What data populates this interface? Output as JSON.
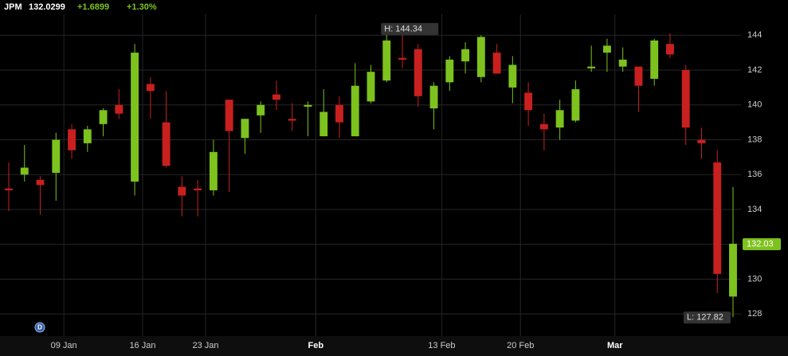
{
  "chart_data": {
    "type": "candlestick",
    "symbol": "JPM",
    "price": "132.0299",
    "change": "+1.6899",
    "change_pct": "+1.30%",
    "open": [
      135.2,
      136.0,
      135.7,
      136.1,
      138.6,
      137.8,
      138.9,
      140.0,
      135.6,
      141.2,
      139.0,
      135.3,
      135.2,
      135.1,
      140.3,
      138.1,
      139.4,
      140.6,
      139.2,
      139.9,
      138.2,
      140.0,
      138.2,
      140.2,
      141.4,
      142.7,
      143.2,
      139.8,
      141.3,
      142.5,
      141.6,
      143.0,
      141.0,
      140.7,
      138.9,
      138.7,
      139.1,
      142.1,
      143.0,
      142.2,
      142.2,
      141.5,
      143.5,
      142.0,
      138.0,
      136.7,
      129.0
    ],
    "high": [
      136.7,
      137.7,
      135.9,
      138.4,
      138.9,
      138.8,
      139.8,
      140.9,
      143.5,
      141.6,
      140.8,
      135.9,
      135.7,
      138.0,
      140.3,
      139.2,
      140.2,
      141.4,
      140.1,
      140.2,
      140.9,
      140.5,
      142.4,
      142.3,
      144.34,
      144.0,
      143.5,
      141.3,
      142.8,
      143.6,
      144.0,
      143.5,
      142.8,
      141.3,
      139.5,
      140.3,
      141.4,
      143.4,
      143.8,
      143.3,
      142.2,
      143.8,
      144.1,
      142.3,
      138.7,
      137.4,
      135.3
    ],
    "low": [
      133.9,
      135.6,
      133.7,
      134.5,
      136.9,
      137.3,
      138.2,
      139.2,
      134.8,
      139.2,
      136.4,
      133.6,
      133.6,
      134.8,
      135.0,
      137.2,
      138.4,
      139.7,
      138.5,
      138.2,
      138.2,
      138.1,
      138.2,
      140.1,
      141.3,
      142.1,
      139.9,
      138.6,
      140.8,
      141.8,
      141.3,
      141.8,
      140.1,
      138.8,
      137.4,
      138.0,
      139.0,
      141.9,
      141.9,
      141.9,
      139.6,
      141.1,
      142.7,
      137.7,
      136.9,
      129.2,
      127.82
    ],
    "close": [
      135.1,
      136.4,
      135.4,
      138.0,
      137.4,
      138.6,
      139.7,
      139.5,
      143.0,
      140.8,
      136.5,
      134.8,
      135.1,
      137.3,
      138.5,
      139.2,
      140.0,
      140.3,
      139.1,
      140.0,
      139.6,
      139.0,
      141.1,
      141.9,
      143.7,
      142.6,
      140.5,
      141.1,
      142.6,
      143.2,
      143.9,
      141.8,
      142.3,
      139.7,
      138.6,
      139.7,
      140.9,
      142.2,
      143.4,
      142.6,
      141.1,
      143.7,
      142.9,
      138.7,
      137.8,
      130.3,
      132.03
    ],
    "up_color": "#7dc21e",
    "down_color": "#c8201f",
    "ylim": [
      126.8,
      145.2
    ],
    "yticks": [
      128,
      130,
      132,
      134,
      136,
      138,
      140,
      142,
      144
    ],
    "xticks": [
      {
        "value": 3.5,
        "label": "09 Jan",
        "major": false
      },
      {
        "value": 8.5,
        "label": "16 Jan",
        "major": false
      },
      {
        "value": 12.5,
        "label": "23 Jan",
        "major": false
      },
      {
        "value": 19.5,
        "label": "Feb",
        "major": true
      },
      {
        "value": 27.5,
        "label": "13 Feb",
        "major": false
      },
      {
        "value": 32.5,
        "label": "20 Feb",
        "major": false
      },
      {
        "value": 38.5,
        "label": "Mar",
        "major": true
      }
    ],
    "high_label": "H: 144.34",
    "low_label": "L: 127.82",
    "last_label": "132.03",
    "grid": true
  }
}
